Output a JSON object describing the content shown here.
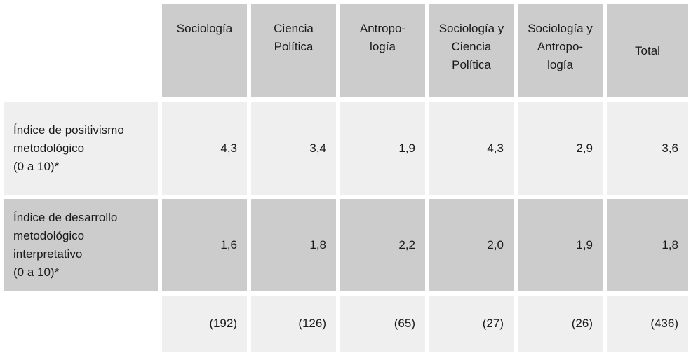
{
  "headers": [
    "Sociología",
    "Ciencia\nPolítica",
    "Antropo-\nlogía",
    "Sociología y\nCiencia\nPolítica",
    "Sociología y\nAntropo-\nlogía",
    "Total"
  ],
  "rows": [
    {
      "label": "Índice de positivismo\nmetodológico\n(0 a 10)*",
      "values": [
        "4,3",
        "3,4",
        "1,9",
        "4,3",
        "2,9",
        "3,6"
      ]
    },
    {
      "label": "Índice de desarrollo\nmetodológico\ninterpretativo\n(0 a 10)*",
      "values": [
        "1,6",
        "1,8",
        "2,2",
        "2,0",
        "1,9",
        "1,8"
      ]
    },
    {
      "label": "",
      "values": [
        "(192)",
        "(126)",
        "(65)",
        "(27)",
        "(26)",
        "(436)"
      ]
    }
  ]
}
